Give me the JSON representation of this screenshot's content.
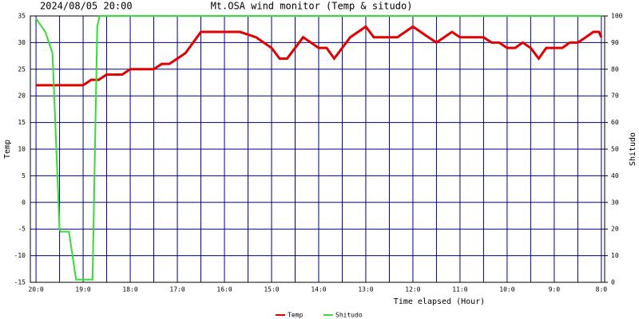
{
  "chart_data": {
    "type": "line",
    "title": "Mt.OSA wind monitor (Temp & situdo)",
    "subtitle": "2024/08/05 20:00",
    "xlabel": "Time elapsed (Hour)",
    "ylabel": "Temp",
    "y2label": "Shitudo",
    "xlim": [
      -0.12,
      12.07
    ],
    "xticks": [
      {
        "value": 0,
        "label": "20:0"
      },
      {
        "value": 1,
        "label": "19:0"
      },
      {
        "value": 2,
        "label": "18:0"
      },
      {
        "value": 3,
        "label": "17:0"
      },
      {
        "value": 4,
        "label": "16:0"
      },
      {
        "value": 5,
        "label": "15:0"
      },
      {
        "value": 6,
        "label": "14:0"
      },
      {
        "value": 7,
        "label": "13:0"
      },
      {
        "value": 8,
        "label": "12:0"
      },
      {
        "value": 9,
        "label": "11:0"
      },
      {
        "value": 10,
        "label": "10:0"
      },
      {
        "value": 11,
        "label": "9:0"
      },
      {
        "value": 12,
        "label": "8:0"
      }
    ],
    "xminor": [
      0.5,
      1.5,
      2.5,
      3.5,
      4.5,
      5.5,
      6.5,
      7.5,
      8.5,
      9.5,
      10.5,
      11.5
    ],
    "ylim": [
      -15,
      35
    ],
    "yticks": [
      -15,
      -10,
      -5,
      0,
      5,
      10,
      15,
      20,
      25,
      30,
      35
    ],
    "y2lim": [
      0,
      100
    ],
    "y2ticks": [
      0,
      10,
      20,
      30,
      40,
      50,
      60,
      70,
      80,
      90,
      100
    ],
    "grid": true,
    "legend": "bottom",
    "series": [
      {
        "name": "Temp",
        "color": "#e00000",
        "x": [
          0,
          1.0,
          1.17,
          1.33,
          1.5,
          1.83,
          2.0,
          2.5,
          2.67,
          2.83,
          3.17,
          3.5,
          4.33,
          4.67,
          5.0,
          5.17,
          5.33,
          5.67,
          6.0,
          6.17,
          6.33,
          6.67,
          7.0,
          7.17,
          7.67,
          8.0,
          8.33,
          8.5,
          8.83,
          9.0,
          9.5,
          9.67,
          9.83,
          10.0,
          10.17,
          10.33,
          10.5,
          10.67,
          10.83,
          11.17,
          11.33,
          11.5,
          11.67,
          11.83,
          11.95,
          12.0
        ],
        "values": [
          22,
          22,
          23,
          23,
          24,
          24,
          25,
          25,
          26,
          26,
          28,
          32,
          32,
          31,
          29,
          27,
          27,
          31,
          29,
          29,
          27,
          31,
          33,
          31,
          31,
          33,
          31,
          30,
          32,
          31,
          31,
          30,
          30,
          29,
          29,
          30,
          29,
          27,
          29,
          29,
          30,
          30,
          31,
          32,
          32,
          31
        ]
      },
      {
        "name": "Shitudo",
        "color": "#33dd33",
        "axis": "y2",
        "x": [
          0,
          0.2,
          0.35,
          0.5,
          0.52,
          0.7,
          0.85,
          1.2,
          1.3,
          1.35,
          12.0
        ],
        "values": [
          99,
          94,
          86,
          20,
          19,
          19,
          1,
          1,
          96,
          100,
          100
        ]
      }
    ]
  }
}
